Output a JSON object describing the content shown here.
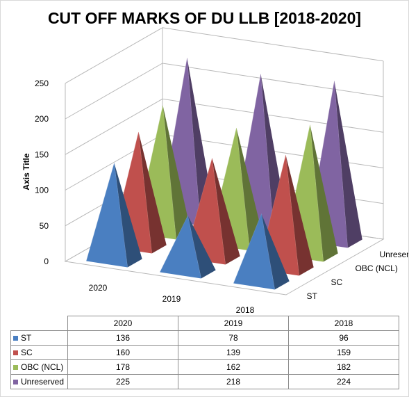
{
  "chart_data": {
    "type": "3d-pyramid-column",
    "title": "CUT OFF MARKS OF DU LLB [2018-2020]",
    "ylabel": "Axis Title",
    "ylim": [
      0,
      250
    ],
    "yticks": [
      0,
      50,
      100,
      150,
      200,
      250
    ],
    "categories": [
      "2020",
      "2019",
      "2018"
    ],
    "series": [
      {
        "name": "ST",
        "color": "#4a7fc1",
        "values": [
          136,
          78,
          96
        ]
      },
      {
        "name": "SC",
        "color": "#c0504d",
        "values": [
          160,
          139,
          159
        ]
      },
      {
        "name": "OBC (NCL)",
        "color": "#9bbb59",
        "values": [
          178,
          162,
          182
        ]
      },
      {
        "name": "Unreserved",
        "color": "#8064a2",
        "values": [
          225,
          218,
          224
        ]
      }
    ],
    "grid": true,
    "legend": "data-table"
  }
}
